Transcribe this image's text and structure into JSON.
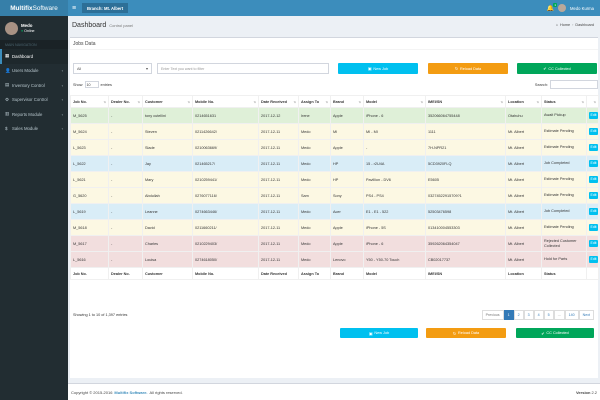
{
  "app": {
    "logo_bold": "Multifix",
    "logo_light": " Software",
    "branch": "Branch: Mt. Albert",
    "notif_count": "1",
    "top_user": "Medo Kurma"
  },
  "sidebar": {
    "user_name": "Medo",
    "user_status": "Online",
    "nav_header": "MAIN NAVIGATION",
    "items": [
      {
        "label": "Dashboard"
      },
      {
        "label": "Users Module"
      },
      {
        "label": "Inventory Control"
      },
      {
        "label": "Supervisor Control"
      },
      {
        "label": "Reports Module"
      },
      {
        "label": "Sales Module"
      }
    ]
  },
  "header": {
    "title": "Dashboard",
    "subtitle": "Control panel",
    "crumb_home": "Home",
    "crumb_current": "Dashboard"
  },
  "box": {
    "title": "Jobs Data"
  },
  "filters": {
    "select_value": "All",
    "text_placeholder": "Enter Text you want to filter",
    "new_job": "New Job",
    "reload": "Reload Data",
    "collected": "CC Collected"
  },
  "table_controls": {
    "show": "Show",
    "length": "10",
    "entries": "entries",
    "search": "Search:"
  },
  "columns": [
    "Job No.",
    "Dealer No.",
    "Customer",
    "Mobile No.",
    "Date Received",
    "Assign To",
    "Brand",
    "Model",
    "IMEI/SN",
    "Location",
    "Status",
    ""
  ],
  "rows": [
    {
      "job": "M_5625",
      "dealer": "-",
      "customer": "tony cutellini",
      "mobile": "0214651631",
      "date": "2017-12-12",
      "assign": "Irene",
      "brand": "Apple",
      "model": "iPhone - 6",
      "imei": "352066064755448",
      "location": "Otahuhu",
      "status": "Await Pickup",
      "cls": "st-green",
      "btn": "Edit"
    },
    {
      "job": "M_5624",
      "dealer": "-",
      "customer": "Steven",
      "mobile": "0211426642/",
      "date": "2017-12-11",
      "assign": "Medo",
      "brand": "MI",
      "model": "MI - MI",
      "imei": "1111",
      "location": "Mt. Albert",
      "status": "Estimate Pending",
      "cls": "st-yellow",
      "btn": "Edit"
    },
    {
      "job": "L_5623",
      "dealer": "-",
      "customer": "Slade",
      "mobile": "0210063669/",
      "date": "2017-12-11",
      "assign": "Medo",
      "brand": "Apple",
      "model": "-",
      "imei": "7H-NPR21",
      "location": "Mt. Albert",
      "status": "Estimate Pending",
      "cls": "st-yellow",
      "btn": "Edit"
    },
    {
      "job": "L_5622",
      "dealer": "-",
      "customer": "Jay",
      "mobile": "021465217/",
      "date": "2017-12-11",
      "assign": "Medo",
      "brand": "HP",
      "model": "15 - r2U4A",
      "imei": "5CD3920FLQ",
      "location": "Mt. Albert",
      "status": "Job Completed",
      "cls": "st-blue",
      "btn": "Edit"
    },
    {
      "job": "L_5621",
      "dealer": "-",
      "customer": "Mary",
      "mobile": "0210259441/",
      "date": "2017-12-11",
      "assign": "Medo",
      "brand": "HP",
      "model": "Pavillion - DV6",
      "imei": "E5605",
      "location": "Mt. Albert",
      "status": "Estimate Pending",
      "cls": "st-yellow",
      "btn": "Edit"
    },
    {
      "job": "G_5620",
      "dealer": "-",
      "customer": "Abdullah",
      "mobile": "0276077116/",
      "date": "2017-12-11",
      "assign": "Sam",
      "brand": "Sony",
      "model": "PS4 - PS4",
      "imei": "03274522915709?1",
      "location": "Mt. Albert",
      "status": "Estimate Pending",
      "cls": "st-yellow",
      "btn": "Edit"
    },
    {
      "job": "L_5619",
      "dealer": "-",
      "customer": "Leanne",
      "mobile": "0274663446/",
      "date": "2017-12-11",
      "assign": "Medo",
      "brand": "Acer",
      "model": "E1 - E1 - 522",
      "imei": "52503476598",
      "location": "Mt. Albert",
      "status": "Job Completed",
      "cls": "st-blue",
      "btn": "Edit"
    },
    {
      "job": "M_5618",
      "dealer": "-",
      "customer": "David",
      "mobile": "0211660211/",
      "date": "2017-12-11",
      "assign": "Medo",
      "brand": "Apple",
      "model": "iPhone - 5S",
      "imei": "013410004553303",
      "location": "Mt. Albert",
      "status": "Estimate Pending",
      "cls": "st-yellow",
      "btn": "Edit"
    },
    {
      "job": "M_5617",
      "dealer": "-",
      "customer": "Charles",
      "mobile": "0210229403/",
      "date": "2017-12-11",
      "assign": "Medo",
      "brand": "Apple",
      "model": "iPhone - 6",
      "imei": "359262064354047",
      "location": "Mt. Albert",
      "status": "Rejected Customer Collected",
      "cls": "st-red",
      "btn": "Edit"
    },
    {
      "job": "L_5616",
      "dealer": "-",
      "customer": "Louisa",
      "mobile": "0274618050/",
      "date": "2017-12-11",
      "assign": "Medo",
      "brand": "Lenovo",
      "model": "Y50 - Y50-70 Touch",
      "imei": "CB02017737",
      "location": "Mt. Albert",
      "status": "Hold for Parts",
      "cls": "st-red",
      "btn": "Edit"
    }
  ],
  "table_info": "Showing 1 to 10 of 1,397 entries",
  "pager": {
    "prev": "Previous",
    "pages": [
      "1",
      "2",
      "3",
      "4",
      "5"
    ],
    "ellipsis": "...",
    "last": "140",
    "next": "Next"
  },
  "bottom_buttons": {
    "new_job": "New Job",
    "reload": "Reload Data",
    "collected": "CC Collected"
  },
  "footer": {
    "copy": "Copyright © 2015-2016",
    "brand": "Multifix Software.",
    "rights": "All rights reserved.",
    "version_label": "Version",
    "version": "2.2"
  }
}
